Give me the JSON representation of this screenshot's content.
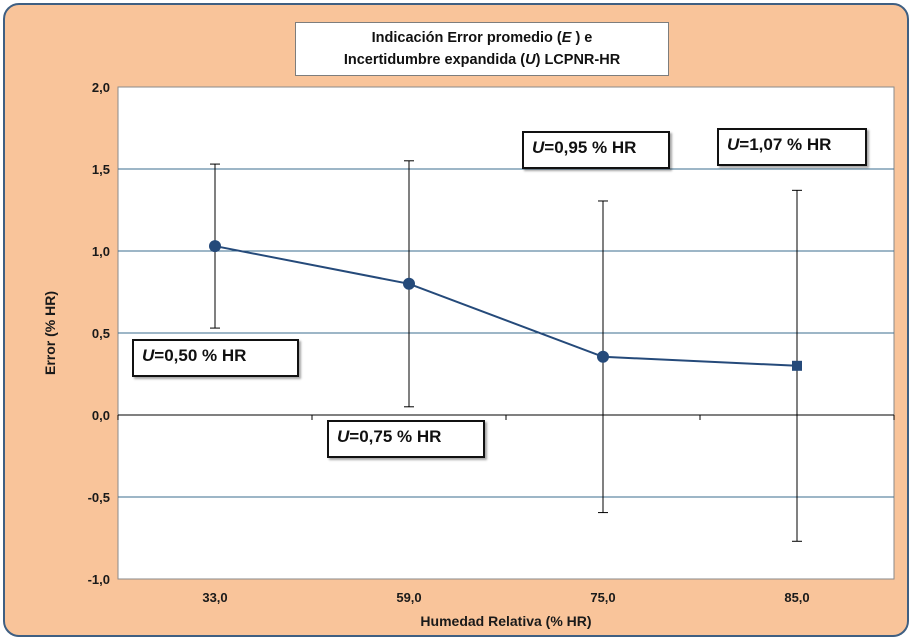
{
  "title": {
    "line1_prefix": "Indicación  Error promedio (",
    "line1_symbol": "E",
    "line1_suffix": " ) e",
    "line2_prefix": "Incertidumbre expandida (",
    "line2_symbol": "U",
    "line2_suffix": ") LCPNR-HR"
  },
  "annotations": [
    {
      "symbol": "U",
      "text": "=0,50 % HR"
    },
    {
      "symbol": "U",
      "text": "=0,75 % HR"
    },
    {
      "symbol": "U",
      "text": "=0,95 % HR"
    },
    {
      "symbol": "U",
      "text": "=1,07 % HR"
    }
  ],
  "colors": {
    "background": "#f9c49a",
    "border": "#3f5f82",
    "plot_area": "#ffffff",
    "series": "#254a7a",
    "gridline": "#3b6e8f",
    "error_bar": "#000000"
  },
  "chart_data": {
    "type": "line",
    "title": "Indicación Error promedio (E) e Incertidumbre expandida (U) LCPNR-HR",
    "xlabel": "Humedad Relativa (% HR)",
    "ylabel": "Error (% HR)",
    "categories": [
      "33,0",
      "59,0",
      "75,0",
      "85,0"
    ],
    "y_tick_labels": [
      "-1,0",
      "-0,5",
      "0,0",
      "0,5",
      "1,0",
      "1,5",
      "2,0"
    ],
    "ylim": [
      -1.0,
      2.0
    ],
    "grid": true,
    "legend": "none",
    "series": [
      {
        "values": [
          1.03,
          0.8,
          0.355,
          0.3
        ],
        "error": [
          0.5,
          0.75,
          0.95,
          1.07
        ],
        "markers": [
          "circle",
          "circle",
          "circle",
          "square"
        ]
      }
    ]
  }
}
